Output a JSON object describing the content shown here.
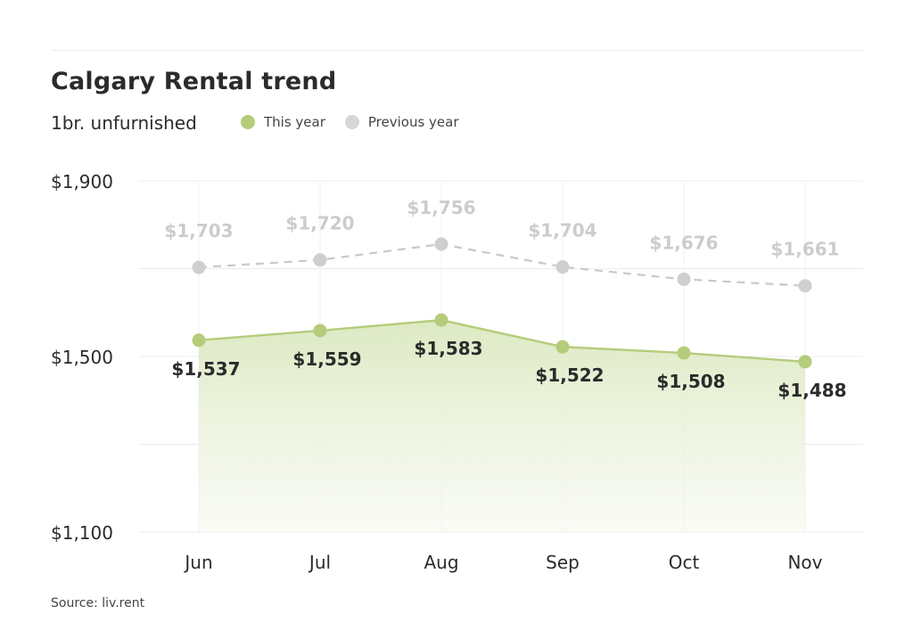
{
  "chart_data": {
    "type": "line",
    "title": "Calgary Rental trend",
    "subtitle": "1br. unfurnished",
    "categories": [
      "Jun",
      "Jul",
      "Aug",
      "Sep",
      "Oct",
      "Nov"
    ],
    "series": [
      {
        "name": "This year",
        "values": [
          1537,
          1559,
          1583,
          1522,
          1508,
          1488
        ],
        "labels": [
          "$1,537",
          "$1,559",
          "$1,583",
          "$1,522",
          "$1,508",
          "$1,488"
        ],
        "color": "#b5cc7a",
        "style": "solid",
        "area_fill": true
      },
      {
        "name": "Previous year",
        "values": [
          1703,
          1720,
          1756,
          1704,
          1676,
          1661
        ],
        "labels": [
          "$1,703",
          "$1,720",
          "$1,756",
          "$1,704",
          "$1,676",
          "$1,661"
        ],
        "color": "#cfcfcf",
        "style": "dashed",
        "area_fill": false
      }
    ],
    "ylim": [
      1100,
      1900
    ],
    "yticks": [
      1100,
      1500,
      1900
    ],
    "ytick_labels": [
      "$1,100",
      "$1,500",
      "$1,900"
    ],
    "grid": true,
    "legend_position": "top-left"
  },
  "source": "Source: liv.rent"
}
